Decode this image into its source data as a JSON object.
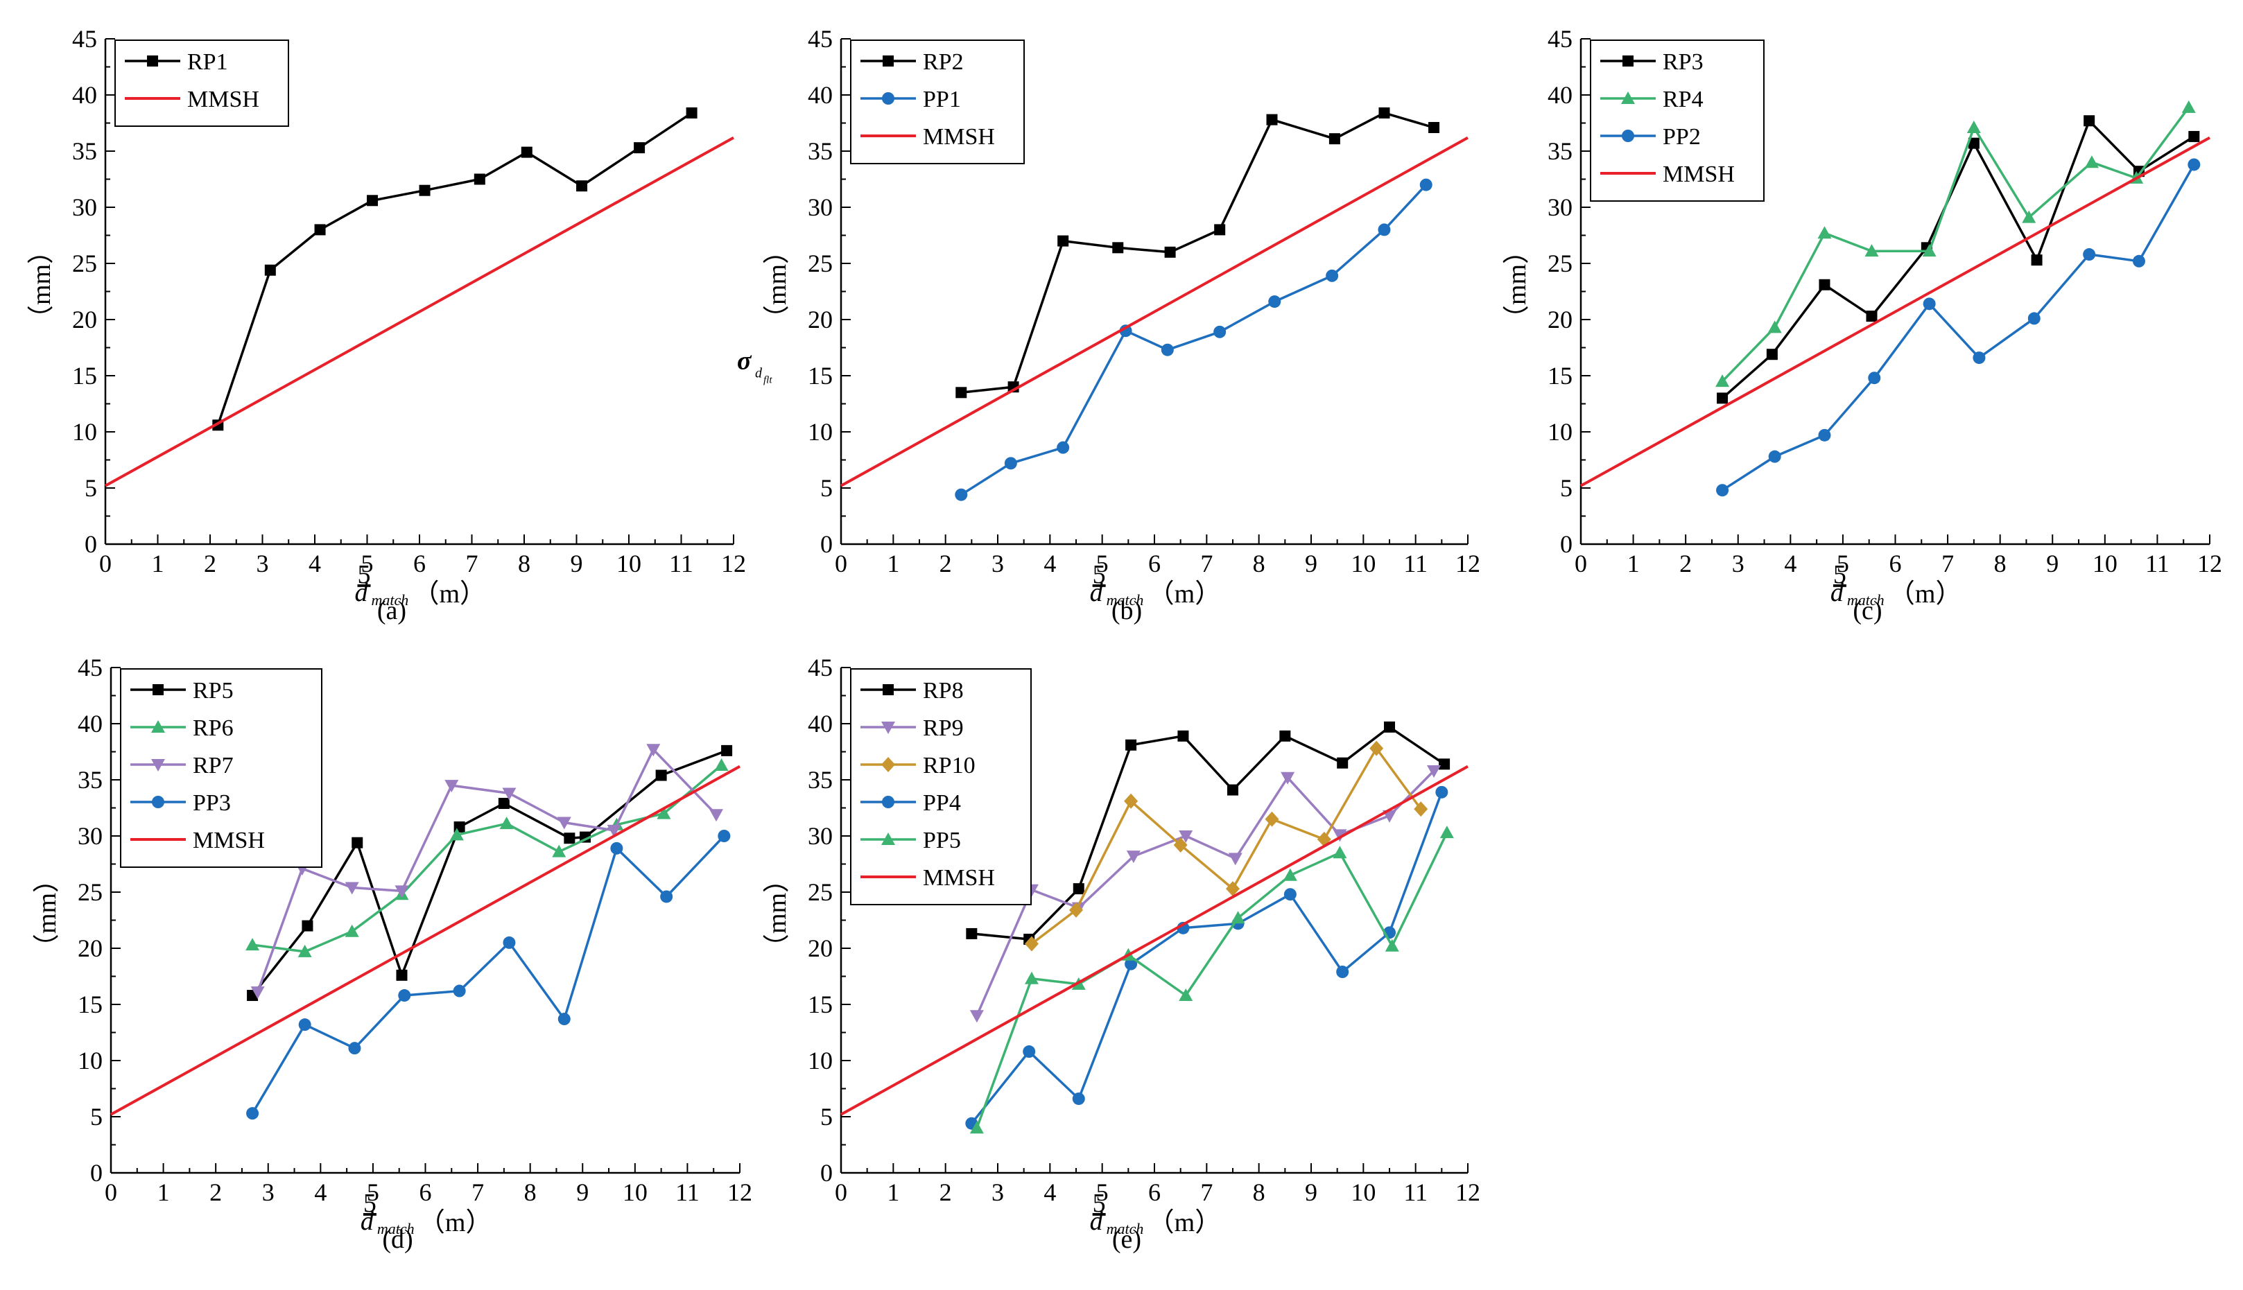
{
  "figure": {
    "title": ""
  },
  "colors": {
    "black": "#000000",
    "green": "#3cb371",
    "purple": "#9a7cc0",
    "blue": "#1f6fbf",
    "gold": "#c8952e",
    "red": "#e8202a"
  },
  "chart_data": [
    {
      "id": "a",
      "type": "line",
      "panel_label": "(a)",
      "xlabel_main": "d",
      "xlabel_sub": "match",
      "xlabel_bar": "5",
      "xlabel_unit": "（m）",
      "ylabel_unit": "（mm）",
      "ylabel_symbol": "",
      "xlim": [
        0,
        12
      ],
      "ylim": [
        0,
        45
      ],
      "xticks": [
        "0",
        "1",
        "2",
        "3",
        "4",
        "5",
        "6",
        "7",
        "8",
        "9",
        "10",
        "11",
        "12"
      ],
      "yticks": [
        "0",
        "5",
        "10",
        "15",
        "20",
        "25",
        "30",
        "35",
        "40",
        "45"
      ],
      "legend_position": "top-left",
      "series": [
        {
          "name": "RP1",
          "color": "black",
          "marker": "square",
          "x": [
            2.15,
            3.15,
            4.1,
            5.1,
            6.1,
            7.15,
            8.05,
            9.1,
            10.2,
            11.2
          ],
          "y": [
            10.6,
            24.4,
            28.0,
            30.6,
            31.5,
            32.5,
            34.9,
            31.9,
            35.3,
            38.4
          ]
        },
        {
          "name": "MMSH",
          "color": "red",
          "marker": "none",
          "x": [
            0,
            12
          ],
          "y": [
            5.2,
            36.2
          ]
        }
      ]
    },
    {
      "id": "b",
      "type": "line",
      "panel_label": "(b)",
      "xlabel_main": "d",
      "xlabel_sub": "match",
      "xlabel_bar": "5",
      "xlabel_unit": "（m）",
      "ylabel_unit": "（mm）",
      "ylabel_symbol": "σ",
      "xlim": [
        0,
        12
      ],
      "ylim": [
        0,
        45
      ],
      "xticks": [
        "0",
        "1",
        "2",
        "3",
        "4",
        "5",
        "6",
        "7",
        "8",
        "9",
        "10",
        "11",
        "12"
      ],
      "yticks": [
        "0",
        "5",
        "10",
        "15",
        "20",
        "25",
        "30",
        "35",
        "40",
        "45"
      ],
      "legend_position": "top-left",
      "series": [
        {
          "name": "RP2",
          "color": "black",
          "marker": "square",
          "x": [
            2.3,
            3.3,
            4.25,
            5.3,
            6.3,
            7.25,
            8.25,
            9.45,
            10.4,
            11.35
          ],
          "y": [
            13.5,
            14.0,
            27.0,
            26.4,
            26.0,
            28.0,
            37.8,
            36.1,
            38.4,
            37.1
          ]
        },
        {
          "name": "PP1",
          "color": "blue",
          "marker": "circle",
          "x": [
            2.3,
            3.25,
            4.25,
            5.45,
            6.25,
            7.25,
            8.3,
            9.4,
            10.4,
            11.2
          ],
          "y": [
            4.4,
            7.2,
            8.6,
            19.0,
            17.3,
            18.9,
            21.6,
            23.9,
            28.0,
            32.0
          ]
        },
        {
          "name": "MMSH",
          "color": "red",
          "marker": "none",
          "x": [
            0,
            12
          ],
          "y": [
            5.2,
            36.2
          ]
        }
      ]
    },
    {
      "id": "c",
      "type": "line",
      "panel_label": "(c)",
      "xlabel_main": "d",
      "xlabel_sub": "match",
      "xlabel_bar": "5",
      "xlabel_unit": "（m）",
      "ylabel_unit": "（mm）",
      "ylabel_symbol": "",
      "xlim": [
        0,
        12
      ],
      "ylim": [
        0,
        45
      ],
      "xticks": [
        "0",
        "1",
        "2",
        "3",
        "4",
        "5",
        "6",
        "7",
        "8",
        "9",
        "10",
        "11",
        "12"
      ],
      "yticks": [
        "0",
        "5",
        "10",
        "15",
        "20",
        "25",
        "30",
        "35",
        "40",
        "45"
      ],
      "legend_position": "top-left",
      "series": [
        {
          "name": "RP3",
          "color": "black",
          "marker": "square",
          "x": [
            2.7,
            3.65,
            4.65,
            5.55,
            6.6,
            7.5,
            8.7,
            9.7,
            10.65,
            11.7
          ],
          "y": [
            13.0,
            16.9,
            23.1,
            20.3,
            26.4,
            35.7,
            25.3,
            37.7,
            33.2,
            36.3
          ]
        },
        {
          "name": "RP4",
          "color": "green",
          "marker": "triangle",
          "x": [
            2.7,
            3.7,
            4.65,
            5.55,
            6.65,
            7.5,
            8.55,
            9.75,
            10.6,
            11.6
          ],
          "y": [
            14.5,
            19.3,
            27.7,
            26.1,
            26.1,
            37.1,
            29.1,
            34.0,
            32.6,
            38.9
          ]
        },
        {
          "name": "PP2",
          "color": "blue",
          "marker": "circle",
          "x": [
            2.7,
            3.7,
            4.65,
            5.6,
            6.65,
            7.6,
            8.65,
            9.7,
            10.65,
            11.7
          ],
          "y": [
            4.8,
            7.8,
            9.7,
            14.8,
            21.4,
            16.6,
            20.1,
            25.8,
            25.2,
            33.8
          ]
        },
        {
          "name": "MMSH",
          "color": "red",
          "marker": "none",
          "x": [
            0,
            12
          ],
          "y": [
            5.2,
            36.2
          ]
        }
      ]
    },
    {
      "id": "d",
      "type": "line",
      "panel_label": "(d)",
      "xlabel_main": "d",
      "xlabel_sub": "match",
      "xlabel_bar": "5",
      "xlabel_unit": "（m）",
      "ylabel_unit": "（mm）",
      "ylabel_symbol": "",
      "xlim": [
        0,
        12
      ],
      "ylim": [
        0,
        45
      ],
      "xticks": [
        "0",
        "1",
        "2",
        "3",
        "4",
        "5",
        "6",
        "7",
        "8",
        "9",
        "10",
        "11",
        "12"
      ],
      "yticks": [
        "0",
        "5",
        "10",
        "15",
        "20",
        "25",
        "30",
        "35",
        "40",
        "45"
      ],
      "legend_position": "top-left",
      "series": [
        {
          "name": "RP5",
          "color": "black",
          "marker": "square",
          "x": [
            2.7,
            3.75,
            4.7,
            5.55,
            6.65,
            7.5,
            8.75,
            9.05,
            10.5,
            11.75
          ],
          "y": [
            15.8,
            22.0,
            29.4,
            17.6,
            30.8,
            32.9,
            29.8,
            29.9,
            35.4,
            37.6
          ]
        },
        {
          "name": "RP6",
          "color": "green",
          "marker": "triangle",
          "x": [
            2.7,
            3.7,
            4.6,
            5.55,
            6.6,
            7.55,
            8.55,
            9.65,
            10.55,
            11.65
          ],
          "y": [
            20.3,
            19.7,
            21.5,
            24.8,
            30.1,
            31.1,
            28.6,
            31.0,
            32.0,
            36.3
          ]
        },
        {
          "name": "RP7",
          "color": "purple",
          "marker": "triangle-down",
          "x": [
            2.8,
            3.65,
            4.6,
            5.55,
            6.5,
            7.6,
            8.65,
            9.6,
            10.35,
            11.55
          ],
          "y": [
            16.1,
            27.1,
            25.4,
            25.1,
            34.5,
            33.8,
            31.2,
            30.5,
            37.7,
            31.9
          ]
        },
        {
          "name": "PP3",
          "color": "blue",
          "marker": "circle",
          "x": [
            2.7,
            3.7,
            4.65,
            5.6,
            6.65,
            7.6,
            8.65,
            9.65,
            10.6,
            11.7
          ],
          "y": [
            5.3,
            13.2,
            11.1,
            15.8,
            16.2,
            20.5,
            13.7,
            28.9,
            24.6,
            30.0
          ]
        },
        {
          "name": "MMSH",
          "color": "red",
          "marker": "none",
          "x": [
            0,
            12
          ],
          "y": [
            5.2,
            36.2
          ]
        }
      ]
    },
    {
      "id": "e",
      "type": "line",
      "panel_label": "(e)",
      "xlabel_main": "d",
      "xlabel_sub": "match",
      "xlabel_bar": "5",
      "xlabel_unit": "（m）",
      "ylabel_unit": "（mm）",
      "ylabel_symbol": "",
      "xlim": [
        0,
        12
      ],
      "ylim": [
        0,
        45
      ],
      "xticks": [
        "0",
        "1",
        "2",
        "3",
        "4",
        "5",
        "6",
        "7",
        "8",
        "9",
        "10",
        "11",
        "12"
      ],
      "yticks": [
        "0",
        "5",
        "10",
        "15",
        "20",
        "25",
        "30",
        "35",
        "40",
        "45"
      ],
      "legend_position": "top-left",
      "series": [
        {
          "name": "RP8",
          "color": "black",
          "marker": "square",
          "x": [
            2.5,
            3.6,
            4.55,
            5.55,
            6.55,
            7.5,
            8.5,
            9.6,
            10.5,
            11.55
          ],
          "y": [
            21.3,
            20.8,
            25.3,
            38.1,
            38.9,
            34.1,
            38.9,
            36.5,
            39.7,
            36.4
          ]
        },
        {
          "name": "RP9",
          "color": "purple",
          "marker": "triangle-down",
          "x": [
            2.6,
            3.65,
            4.55,
            5.6,
            6.6,
            7.55,
            8.55,
            9.55,
            10.5,
            11.35
          ],
          "y": [
            14.0,
            25.2,
            23.6,
            28.2,
            30.0,
            28.0,
            35.2,
            30.1,
            31.8,
            35.8
          ]
        },
        {
          "name": "RP10",
          "color": "gold",
          "marker": "diamond",
          "x": [
            3.65,
            4.5,
            5.55,
            6.5,
            7.5,
            8.25,
            9.25,
            10.25,
            11.1
          ],
          "y": [
            20.4,
            23.4,
            33.1,
            29.2,
            25.3,
            31.5,
            29.7,
            37.8,
            32.4
          ]
        },
        {
          "name": "PP4",
          "color": "blue",
          "marker": "circle",
          "x": [
            2.5,
            3.6,
            4.55,
            5.55,
            6.55,
            7.6,
            8.6,
            9.6,
            10.5,
            11.5
          ],
          "y": [
            4.4,
            10.8,
            6.6,
            18.6,
            21.8,
            22.2,
            24.8,
            17.9,
            21.4,
            33.9
          ]
        },
        {
          "name": "PP5",
          "color": "green",
          "marker": "triangle",
          "x": [
            2.6,
            3.65,
            4.55,
            5.5,
            6.6,
            7.6,
            8.6,
            9.55,
            10.55,
            11.6
          ],
          "y": [
            4.0,
            17.3,
            16.8,
            19.4,
            15.8,
            22.7,
            26.5,
            28.5,
            20.2,
            30.3
          ]
        },
        {
          "name": "MMSH",
          "color": "red",
          "marker": "none",
          "x": [
            0,
            12
          ],
          "y": [
            5.2,
            36.2
          ]
        }
      ]
    }
  ]
}
